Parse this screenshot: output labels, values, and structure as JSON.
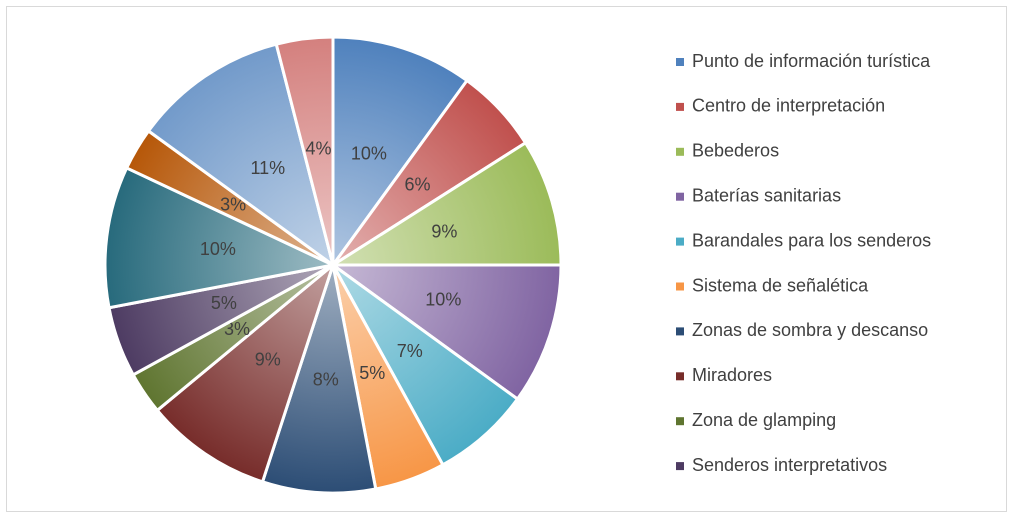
{
  "chart_data": {
    "type": "pie",
    "categories": [
      "Punto de información turística",
      "Centro de interpretación",
      "Bebederos",
      "Baterías sanitarias",
      "Barandales para los senderos",
      "Sistema de señalética",
      "Zonas de sombra y descanso",
      "Miradores",
      "Zona de glamping",
      "Senderos interpretativos",
      null,
      null,
      null,
      null
    ],
    "values": [
      10,
      6,
      9,
      10,
      7,
      5,
      8,
      9,
      3,
      5,
      10,
      3,
      11,
      4
    ],
    "value_labels": [
      "10%",
      "6%",
      "9%",
      "10%",
      "7%",
      "5%",
      "8%",
      "9%",
      "3%",
      "5%",
      "10%",
      "3%",
      "11%",
      "4%"
    ],
    "colors": [
      "#4f81bd",
      "#c0504d",
      "#9bbb59",
      "#8064a2",
      "#4bacc6",
      "#f79646",
      "#2c4d75",
      "#772c2a",
      "#5f7530",
      "#4d3b62",
      "#276a7c",
      "#b65708",
      "#729aca",
      "#d4807e"
    ],
    "legend": "right"
  }
}
